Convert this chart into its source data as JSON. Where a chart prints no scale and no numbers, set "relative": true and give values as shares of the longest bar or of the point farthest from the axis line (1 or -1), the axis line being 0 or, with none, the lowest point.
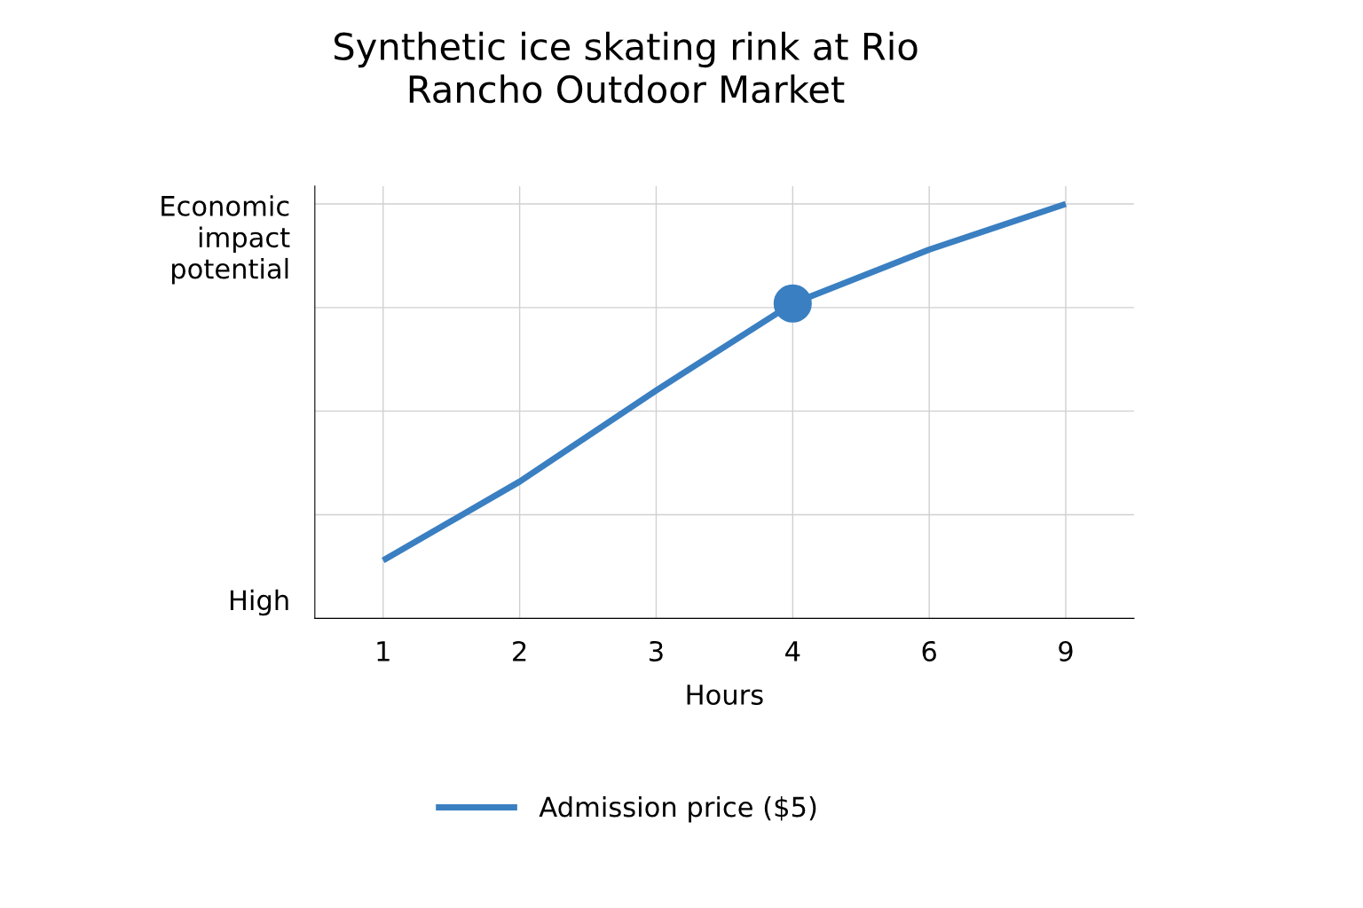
{
  "chart_data": {
    "type": "line",
    "title": "Synthetic ice skating rink at Rio\nRancho Outdoor Market",
    "xlabel": "Hours",
    "ylabel": "Economic\nimpact\npotential",
    "relative": true,
    "categories": [
      "1",
      "2",
      "3",
      "4",
      "6",
      "9"
    ],
    "series": [
      {
        "name": "Admission price ($5)",
        "color": "#3a7fc1",
        "values": [
          0.14,
          0.33,
          0.55,
          0.76,
          0.89,
          1.0
        ],
        "marker": "none"
      },
      {
        "type": "scatter",
        "color": "#3a7fc1",
        "x": [
          "4"
        ],
        "values": [
          0.76
        ],
        "marker": "circle"
      }
    ],
    "annotations": [
      "High"
    ],
    "grid": true,
    "legend": "bottom",
    "line_style": "solid"
  }
}
